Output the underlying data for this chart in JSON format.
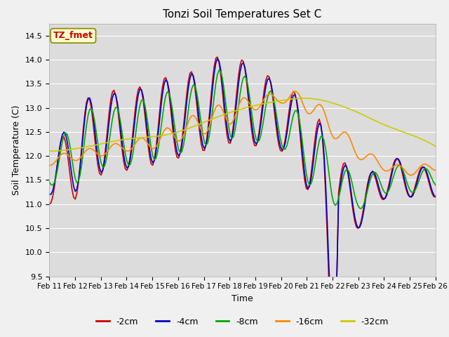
{
  "title": "Tonzi Soil Temperatures Set C",
  "xlabel": "Time",
  "ylabel": "Soil Temperature (C)",
  "annotation": "TZ_fmet",
  "ylim": [
    9.5,
    14.75
  ],
  "fig_bg": "#f0f0f0",
  "plot_bg": "#dcdcdc",
  "series_order": [
    "-2cm",
    "-4cm",
    "-8cm",
    "-16cm",
    "-32cm"
  ],
  "series": {
    "-2cm": {
      "color": "#cc0000",
      "linewidth": 1.2
    },
    "-4cm": {
      "color": "#0000cc",
      "linewidth": 1.2
    },
    "-8cm": {
      "color": "#00aa00",
      "linewidth": 1.2
    },
    "-16cm": {
      "color": "#ff8800",
      "linewidth": 1.2
    },
    "-32cm": {
      "color": "#cccc00",
      "linewidth": 1.2
    }
  },
  "xtick_labels": [
    "Feb 11",
    "Feb 12",
    "Feb 13",
    "Feb 14",
    "Feb 15",
    "Feb 16",
    "Feb 17",
    "Feb 18",
    "Feb 19",
    "Feb 20",
    "Feb 21",
    "Feb 22",
    "Feb 23",
    "Feb 24",
    "Feb 25",
    "Feb 26"
  ],
  "ytick_values": [
    9.5,
    10.0,
    10.5,
    11.0,
    11.5,
    12.0,
    12.5,
    13.0,
    13.5,
    14.0,
    14.5
  ],
  "npoints": 240,
  "annotation_color": "#cc0000",
  "annotation_bg": "#ffffcc",
  "annotation_edge": "#888800"
}
